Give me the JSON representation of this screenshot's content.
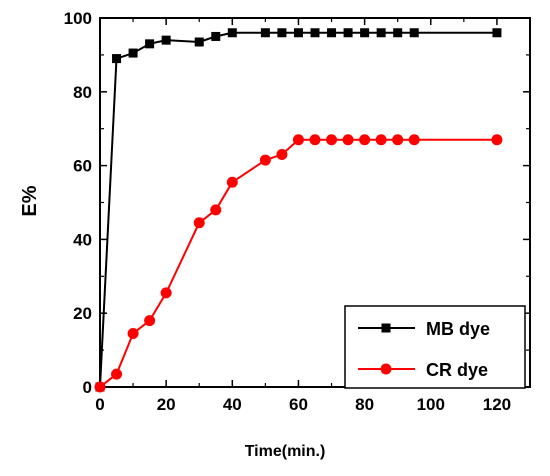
{
  "chart_data": {
    "type": "line",
    "xlabel": "Time(min.)",
    "ylabel": "E%",
    "xlim": [
      0,
      130
    ],
    "ylim": [
      0,
      100
    ],
    "xticks": [
      0,
      20,
      40,
      60,
      80,
      100,
      120
    ],
    "yticks": [
      0,
      20,
      40,
      60,
      80,
      100
    ],
    "legend_position": "bottom-right",
    "grid": false,
    "series": [
      {
        "name": "MB dye",
        "color": "#000000",
        "marker": "square",
        "x": [
          0,
          5,
          10,
          15,
          20,
          30,
          35,
          40,
          50,
          55,
          60,
          65,
          70,
          75,
          80,
          85,
          90,
          95,
          120
        ],
        "y": [
          0,
          89,
          90.5,
          93,
          94,
          93.5,
          95,
          96,
          96,
          96,
          96,
          96,
          96,
          96,
          96,
          96,
          96,
          96,
          96
        ]
      },
      {
        "name": "CR dye",
        "color": "#ff0000",
        "marker": "circle",
        "x": [
          0,
          5,
          10,
          15,
          20,
          30,
          35,
          40,
          50,
          55,
          60,
          65,
          70,
          75,
          80,
          85,
          90,
          95,
          120
        ],
        "y": [
          0,
          3.5,
          14.5,
          18,
          25.5,
          44.5,
          48,
          55.5,
          61.5,
          63,
          67,
          67,
          67,
          67,
          67,
          67,
          67,
          67,
          67
        ]
      }
    ]
  }
}
